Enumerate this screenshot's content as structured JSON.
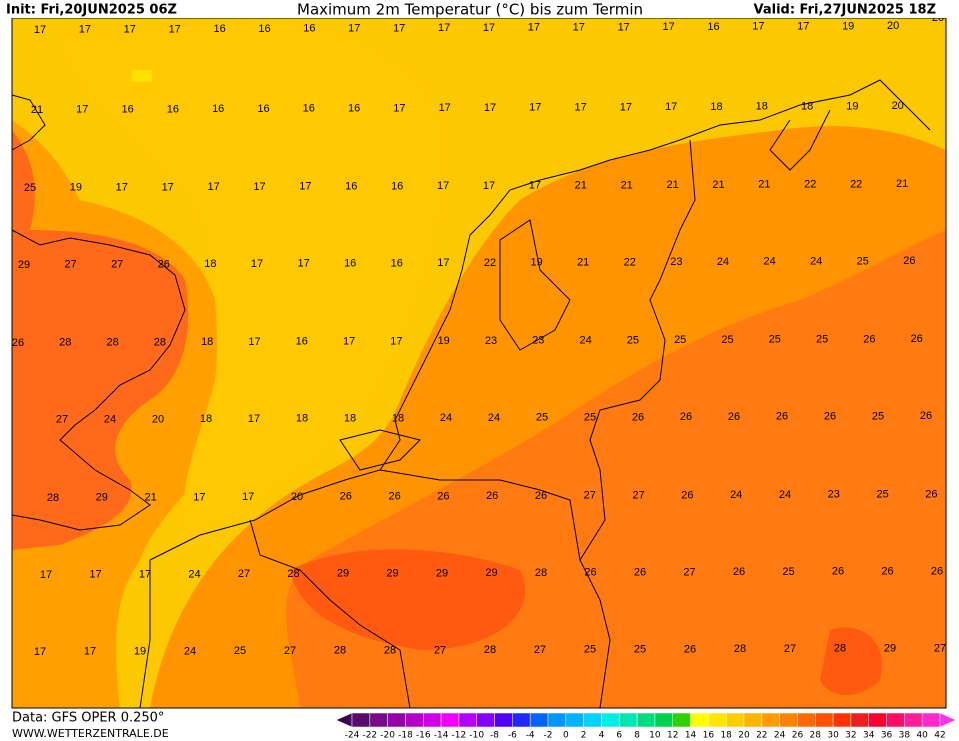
{
  "header": {
    "init": "Init: Fri,20JUN2025 06Z",
    "title": "Maximum 2m Temperatur (°C) bis zum Termin",
    "valid": "Valid: Fri,27JUN2025 18Z"
  },
  "grid": {
    "rows": [
      [
        17,
        17,
        17,
        17,
        16,
        16,
        16,
        17,
        17,
        17,
        17,
        17,
        17,
        17,
        17,
        16,
        17,
        17,
        19,
        20,
        20
      ],
      [
        21,
        17,
        16,
        16,
        16,
        16,
        16,
        16,
        17,
        17,
        17,
        17,
        17,
        17,
        17,
        18,
        18,
        18,
        19,
        20,
        null
      ],
      [
        25,
        19,
        17,
        17,
        17,
        17,
        17,
        16,
        16,
        17,
        17,
        17,
        21,
        21,
        21,
        21,
        21,
        22,
        22,
        21
      ],
      [
        29,
        27,
        27,
        26,
        18,
        17,
        17,
        16,
        16,
        17,
        22,
        19,
        21,
        22,
        23,
        24,
        24,
        24,
        25,
        26
      ],
      [
        26,
        28,
        28,
        28,
        18,
        17,
        16,
        17,
        17,
        19,
        23,
        23,
        24,
        25,
        25,
        25,
        25,
        25,
        26,
        26
      ],
      [
        null,
        27,
        24,
        20,
        18,
        17,
        18,
        18,
        18,
        24,
        24,
        25,
        25,
        26,
        26,
        26,
        26,
        26,
        25,
        26
      ],
      [
        28,
        29,
        21,
        17,
        17,
        20,
        26,
        26,
        26,
        26,
        26,
        27,
        27,
        26,
        24,
        24,
        23,
        25,
        26
      ],
      [
        17,
        17,
        17,
        24,
        27,
        28,
        29,
        29,
        29,
        29,
        28,
        26,
        26,
        27,
        26,
        25,
        26,
        26,
        26
      ],
      [
        17,
        17,
        19,
        24,
        25,
        27,
        28,
        28,
        27,
        28,
        27,
        25,
        25,
        26,
        28,
        27,
        28,
        29,
        27
      ]
    ]
  },
  "colorbar": {
    "ticks": [
      -24,
      -22,
      -20,
      -18,
      -16,
      -14,
      -12,
      -10,
      -8,
      -6,
      -4,
      -2,
      0,
      2,
      4,
      6,
      8,
      10,
      12,
      14,
      16,
      18,
      20,
      22,
      24,
      26,
      28,
      30,
      32,
      34,
      36,
      38,
      40,
      42
    ],
    "colors": [
      "#3c0050",
      "#5a0a6e",
      "#780a8c",
      "#9600aa",
      "#b400c8",
      "#d200e6",
      "#f000ff",
      "#b400ff",
      "#8200ff",
      "#5000ff",
      "#1e28ff",
      "#0064ff",
      "#0096ff",
      "#00b4ff",
      "#00d2ff",
      "#00f0e6",
      "#00e6b4",
      "#00dc82",
      "#00d250",
      "#32d200",
      "#ffff00",
      "#ffe600",
      "#ffcc00",
      "#ffb400",
      "#ff9c00",
      "#ff8200",
      "#ff6a00",
      "#ff5000",
      "#ff3200",
      "#f01e1e",
      "#ff0032",
      "#ff0a64",
      "#ff1e96",
      "#ff28c8",
      "#ff32f0"
    ]
  },
  "footer": {
    "data": "Data: GFS OPER 0.250°",
    "site": "WWW.WETTERZENTRALE.DE"
  }
}
